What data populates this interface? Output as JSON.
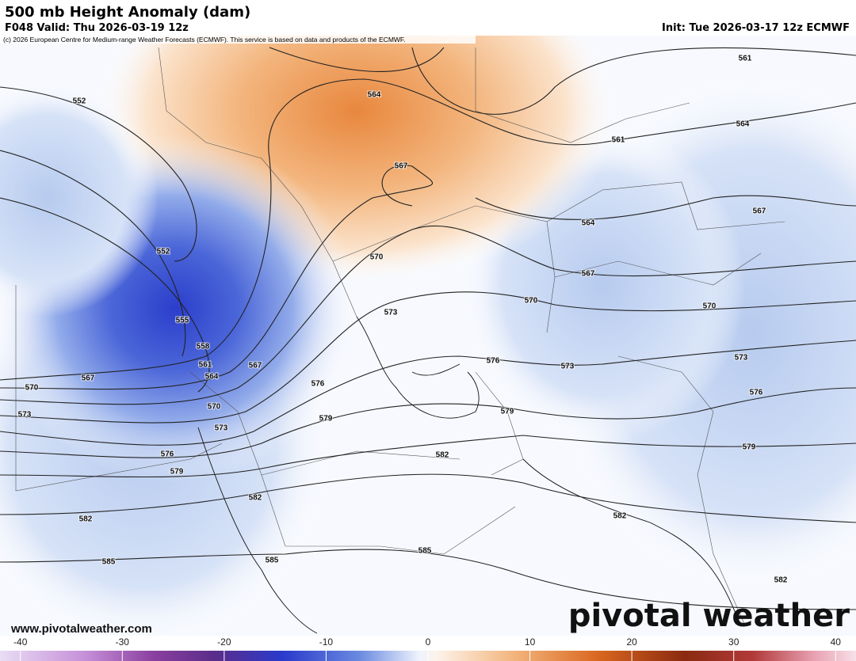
{
  "header": {
    "title": "500 mb Height Anomaly (dam)",
    "valid": "F048 Valid: Thu 2026-03-19 12z",
    "init": "Init: Tue 2026-03-17 12z ECMWF",
    "credit": "(c) 2026 European Centre for Medium-range Weather Forecasts (ECMWF). This service is based on data and products of the ECMWF."
  },
  "map": {
    "contour_labels": [
      552,
      564,
      561,
      564,
      561,
      567,
      567,
      564,
      552,
      570,
      567,
      570,
      570,
      573,
      555,
      558,
      573,
      576,
      567,
      561,
      573,
      567,
      564,
      570,
      576,
      576,
      570,
      579,
      579,
      573,
      573,
      579,
      582,
      576,
      579,
      582,
      582,
      582,
      585,
      585,
      585,
      582
    ]
  },
  "footer": {
    "url": "www.pivotalweather.com",
    "logo": "pivotal weather"
  },
  "colorbar": {
    "lim": [
      -42,
      42
    ],
    "ticks": [
      -40,
      -30,
      -20,
      -10,
      0,
      10,
      20,
      30,
      40
    ]
  }
}
